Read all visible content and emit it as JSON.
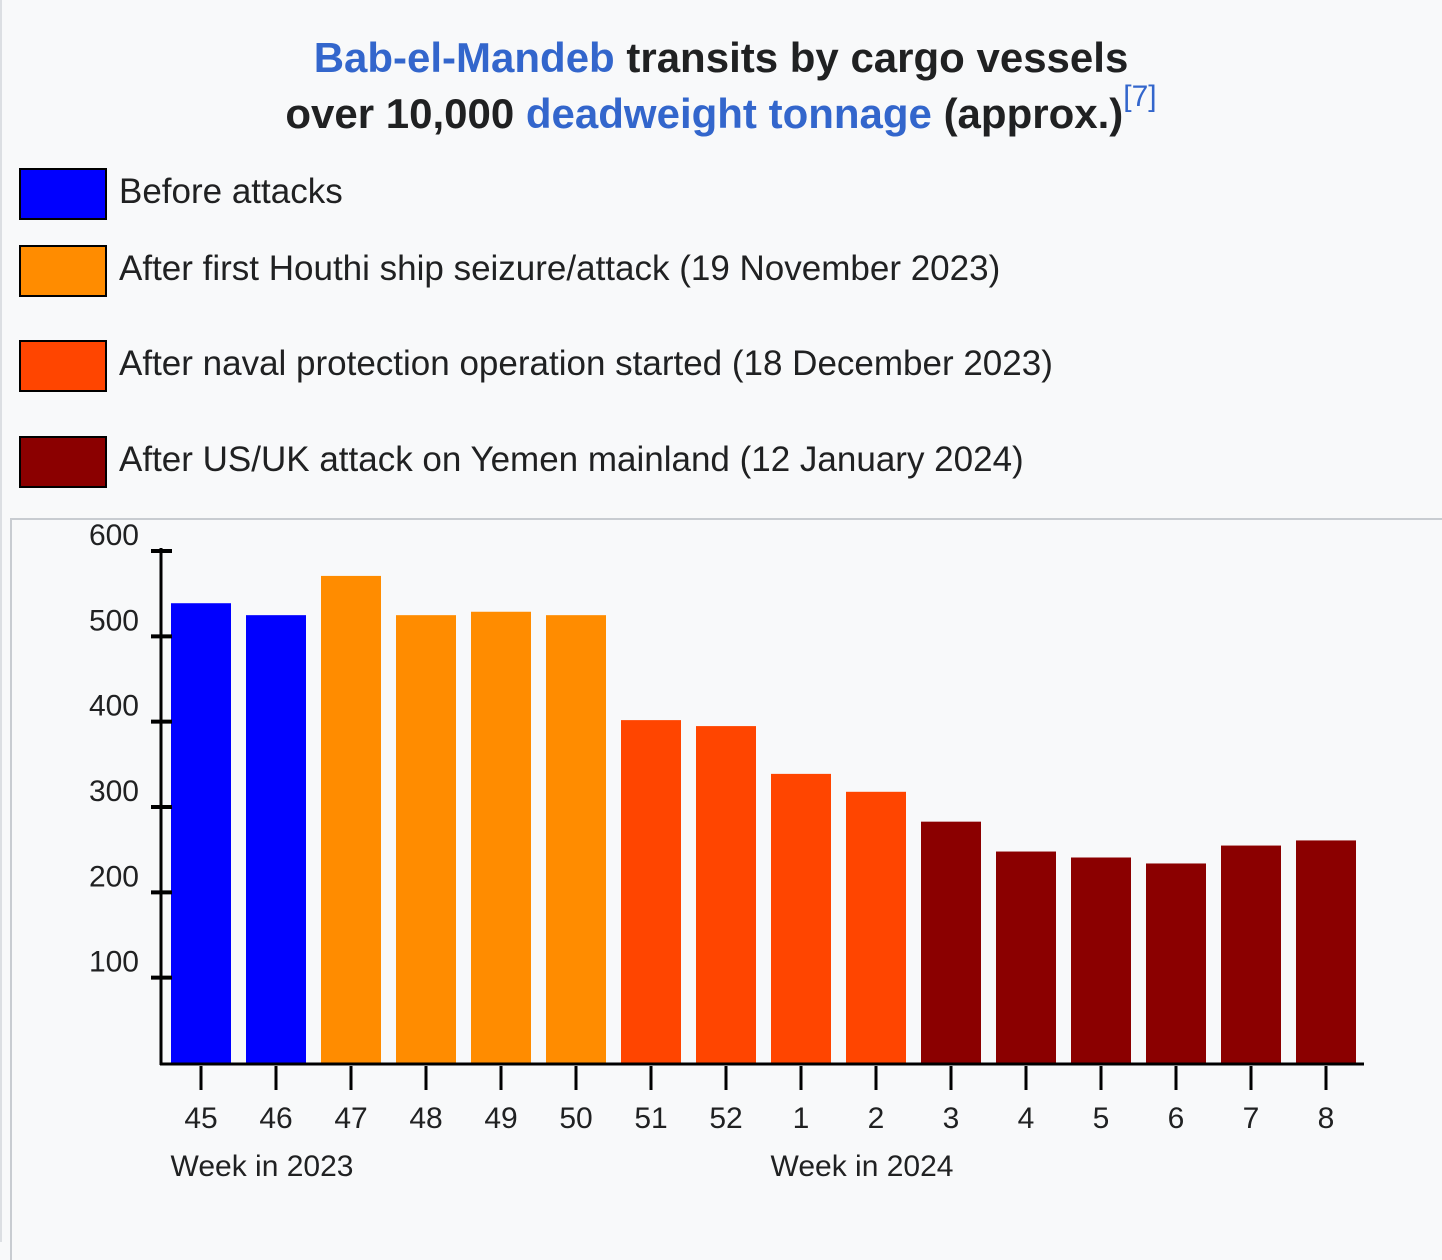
{
  "title": {
    "link1": "Bab-el-Mandeb",
    "text1": " transits by cargo vessels",
    "text2": "over 10,000 ",
    "link2": "deadweight tonnage",
    "text3": " (approx.)",
    "ref": "[7]"
  },
  "legend": [
    {
      "label": "Before attacks",
      "color": "#0000ff"
    },
    {
      "label": "After first Houthi ship seizure/attack (19 November 2023)",
      "color": "#ff8c00"
    },
    {
      "label": "After naval protection operation started (18 December 2023)",
      "color": "#ff4500"
    },
    {
      "label": "After US/UK attack on Yemen mainland (12 January 2024)",
      "color": "#8b0000"
    }
  ],
  "chart_data": {
    "type": "bar",
    "title": "",
    "categories": [
      "45",
      "46",
      "47",
      "48",
      "49",
      "50",
      "51",
      "52",
      "1",
      "2",
      "3",
      "4",
      "5",
      "6",
      "7",
      "8"
    ],
    "values": [
      540,
      526,
      572,
      526,
      530,
      526,
      403,
      396,
      340,
      319,
      284,
      249,
      242,
      235,
      256,
      262
    ],
    "bar_colors": [
      "#0000ff",
      "#0000ff",
      "#ff8c00",
      "#ff8c00",
      "#ff8c00",
      "#ff8c00",
      "#ff4500",
      "#ff4500",
      "#ff4500",
      "#ff4500",
      "#8b0000",
      "#8b0000",
      "#8b0000",
      "#8b0000",
      "#8b0000",
      "#8b0000"
    ],
    "y_ticks": [
      "100",
      "200",
      "300",
      "400",
      "500",
      "600"
    ],
    "ylim": [
      0,
      600
    ],
    "xlabel_groups": [
      "Week in 2023",
      "Week in 2024"
    ],
    "ylabel": "",
    "grid": false,
    "legend_position": "top"
  }
}
